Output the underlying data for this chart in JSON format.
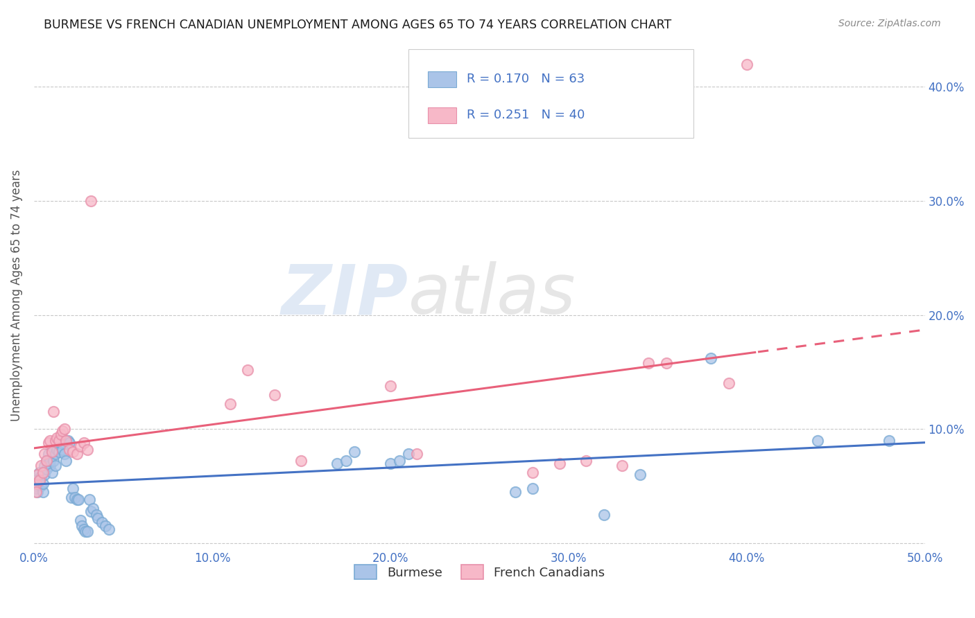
{
  "title": "BURMESE VS FRENCH CANADIAN UNEMPLOYMENT AMONG AGES 65 TO 74 YEARS CORRELATION CHART",
  "source": "Source: ZipAtlas.com",
  "ylabel": "Unemployment Among Ages 65 to 74 years",
  "xlim": [
    0.0,
    0.5
  ],
  "ylim": [
    -0.005,
    0.44
  ],
  "burmese_color": "#aac4e8",
  "burmese_edge_color": "#7aaad4",
  "french_color": "#f7b8c8",
  "french_edge_color": "#e890aa",
  "burmese_line_color": "#4472c4",
  "french_line_color": "#e8607a",
  "burmese_R": 0.17,
  "burmese_N": 63,
  "french_R": 0.251,
  "french_N": 40,
  "legend_label_burmese": "Burmese",
  "legend_label_french": "French Canadians",
  "watermark_zip": "ZIP",
  "watermark_atlas": "atlas",
  "background_color": "#ffffff",
  "tick_color": "#4472c4",
  "ylabel_color": "#555555",
  "burmese_x": [
    0.001,
    0.001,
    0.001,
    0.002,
    0.002,
    0.003,
    0.003,
    0.004,
    0.004,
    0.005,
    0.005,
    0.006,
    0.006,
    0.007,
    0.007,
    0.008,
    0.008,
    0.009,
    0.009,
    0.01,
    0.01,
    0.011,
    0.012,
    0.012,
    0.013,
    0.014,
    0.015,
    0.016,
    0.017,
    0.018,
    0.019,
    0.02,
    0.021,
    0.022,
    0.023,
    0.024,
    0.025,
    0.026,
    0.027,
    0.028,
    0.029,
    0.03,
    0.031,
    0.032,
    0.033,
    0.035,
    0.036,
    0.038,
    0.04,
    0.042,
    0.17,
    0.175,
    0.18,
    0.2,
    0.205,
    0.21,
    0.27,
    0.28,
    0.32,
    0.34,
    0.38,
    0.44,
    0.48
  ],
  "burmese_y": [
    0.05,
    0.055,
    0.048,
    0.052,
    0.045,
    0.055,
    0.062,
    0.05,
    0.058,
    0.045,
    0.052,
    0.068,
    0.06,
    0.072,
    0.065,
    0.078,
    0.07,
    0.068,
    0.072,
    0.062,
    0.08,
    0.072,
    0.068,
    0.078,
    0.082,
    0.08,
    0.088,
    0.082,
    0.078,
    0.072,
    0.09,
    0.088,
    0.04,
    0.048,
    0.04,
    0.038,
    0.038,
    0.02,
    0.015,
    0.012,
    0.01,
    0.01,
    0.038,
    0.028,
    0.03,
    0.025,
    0.022,
    0.018,
    0.015,
    0.012,
    0.07,
    0.072,
    0.08,
    0.07,
    0.072,
    0.078,
    0.045,
    0.048,
    0.025,
    0.06,
    0.162,
    0.09,
    0.09
  ],
  "french_x": [
    0.001,
    0.001,
    0.002,
    0.003,
    0.004,
    0.005,
    0.006,
    0.007,
    0.008,
    0.009,
    0.01,
    0.011,
    0.012,
    0.013,
    0.014,
    0.015,
    0.016,
    0.017,
    0.018,
    0.02,
    0.022,
    0.024,
    0.026,
    0.028,
    0.03,
    0.032,
    0.11,
    0.12,
    0.135,
    0.15,
    0.2,
    0.215,
    0.28,
    0.295,
    0.31,
    0.33,
    0.345,
    0.355,
    0.39,
    0.4
  ],
  "french_y": [
    0.052,
    0.045,
    0.06,
    0.055,
    0.068,
    0.062,
    0.078,
    0.072,
    0.088,
    0.09,
    0.08,
    0.115,
    0.09,
    0.092,
    0.09,
    0.095,
    0.098,
    0.1,
    0.09,
    0.082,
    0.08,
    0.078,
    0.085,
    0.088,
    0.082,
    0.3,
    0.122,
    0.152,
    0.13,
    0.072,
    0.138,
    0.078,
    0.062,
    0.07,
    0.072,
    0.068,
    0.158,
    0.158,
    0.14,
    0.42
  ]
}
